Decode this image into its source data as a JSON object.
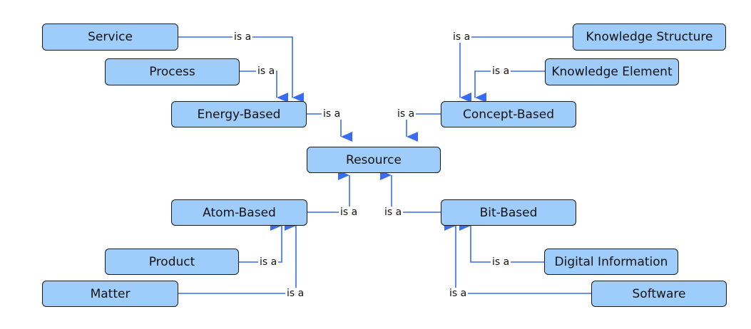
{
  "edge_label": "is a",
  "nodes": {
    "resource": "Resource",
    "energy_based": "Energy-Based",
    "concept_based": "Concept-Based",
    "atom_based": "Atom-Based",
    "bit_based": "Bit-Based",
    "service": "Service",
    "process": "Process",
    "knowledge_structure": "Knowledge Structure",
    "knowledge_element": "Knowledge Element",
    "product": "Product",
    "matter": "Matter",
    "digital_information": "Digital Information",
    "software": "Software"
  },
  "colors": {
    "node_fill": "#9fcdfb",
    "edge": "#3a6cf2"
  }
}
